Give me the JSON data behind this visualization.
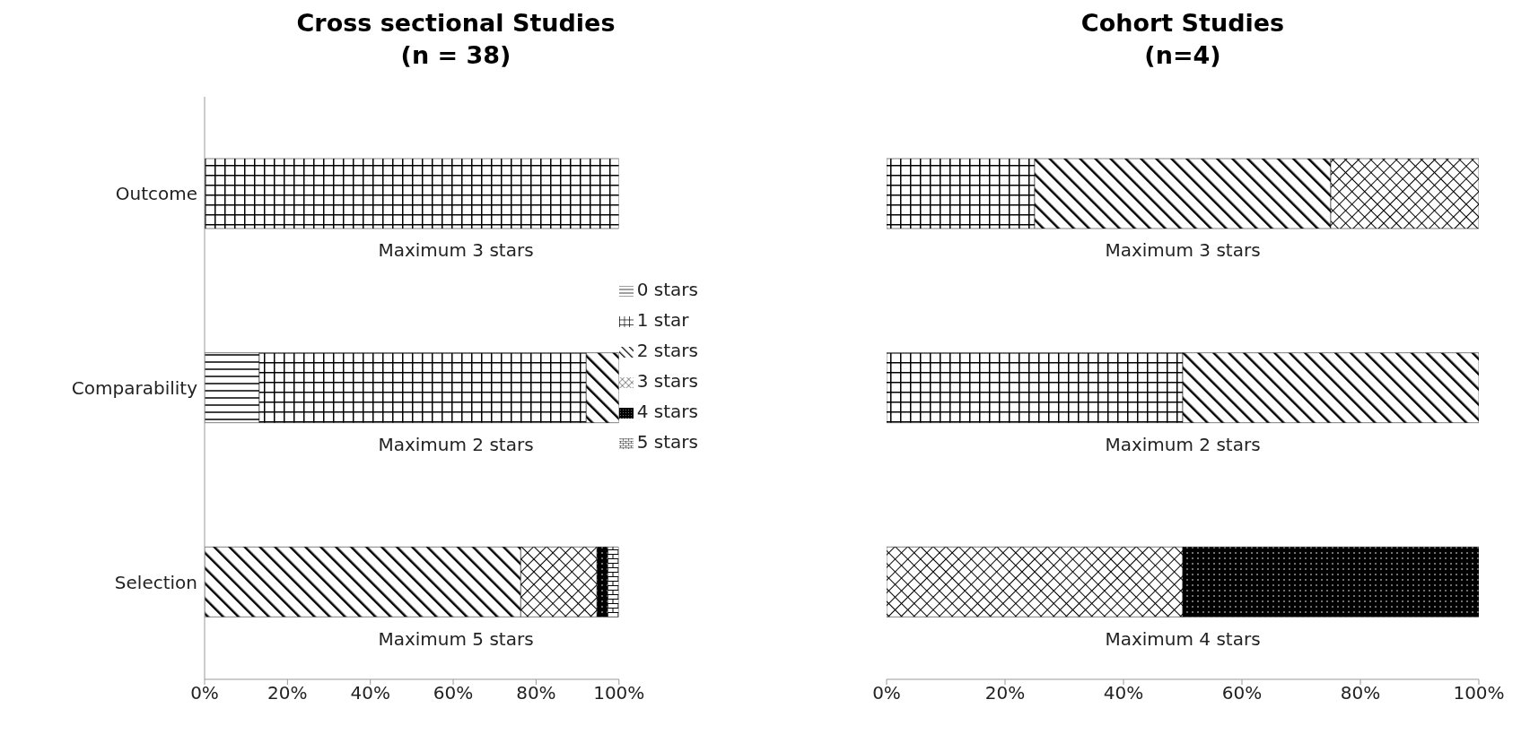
{
  "chart_data": [
    {
      "type": "bar",
      "orientation": "horizontal",
      "stacked": true,
      "title": "Cross sectional Studies",
      "subtitle": "(n = 38)",
      "categories": [
        "Outcome",
        "Comparability",
        "Selection"
      ],
      "series": [
        {
          "name": "0 stars",
          "color": "#000000",
          "values": [
            null,
            13.2,
            null
          ]
        },
        {
          "name": "1 star",
          "color": "#000000",
          "values": [
            100,
            78.9,
            null
          ]
        },
        {
          "name": "2 stars",
          "color": "#000000",
          "values": [
            null,
            7.9,
            76.3
          ]
        },
        {
          "name": "3 stars",
          "color": "#000000",
          "values": [
            null,
            null,
            18.4
          ]
        },
        {
          "name": "4 stars",
          "color": "#000000",
          "values": [
            null,
            null,
            2.6
          ]
        },
        {
          "name": "5 stars",
          "color": "#000000",
          "values": [
            null,
            null,
            2.6
          ]
        }
      ],
      "xlim": [
        0,
        100
      ],
      "xticks": [
        {
          "value": 0,
          "label": "0%"
        },
        {
          "value": 20,
          "label": "20%"
        },
        {
          "value": 40,
          "label": "40%"
        },
        {
          "value": 60,
          "label": "60%"
        },
        {
          "value": 80,
          "label": "80%"
        },
        {
          "value": 100,
          "label": "100%"
        }
      ],
      "annotations": [
        "Maximum 3 stars",
        "Maximum 2 stars",
        "Maximum 5 stars"
      ],
      "legend": "right",
      "grid": false
    },
    {
      "type": "bar",
      "orientation": "horizontal",
      "stacked": true,
      "title": "Cohort Studies",
      "subtitle": "(n=4)",
      "categories": [
        null,
        null,
        null
      ],
      "series": [
        {
          "color": "#000000",
          "values": [
            null,
            null,
            null
          ]
        },
        {
          "color": "#000000",
          "values": [
            25,
            50,
            null
          ]
        },
        {
          "color": "#000000",
          "values": [
            50,
            50,
            null
          ]
        },
        {
          "color": "#000000",
          "values": [
            25,
            null,
            50
          ]
        },
        {
          "color": "#000000",
          "values": [
            null,
            null,
            50
          ]
        },
        {
          "color": "#000000",
          "values": [
            null,
            null,
            null
          ]
        }
      ],
      "xlim": [
        0,
        100
      ],
      "xticks": [
        {
          "value": 0,
          "label": "0%"
        },
        {
          "value": 20,
          "label": "20%"
        },
        {
          "value": 40,
          "label": "40%"
        },
        {
          "value": 60,
          "label": "60%"
        },
        {
          "value": 80,
          "label": "80%"
        },
        {
          "value": 100,
          "label": "100%"
        }
      ],
      "annotations": [
        "Maximum 3 stars",
        "Maximum 2 stars",
        "Maximum 4 stars"
      ],
      "tick_labels": "x",
      "legend": false,
      "grid": false
    }
  ]
}
